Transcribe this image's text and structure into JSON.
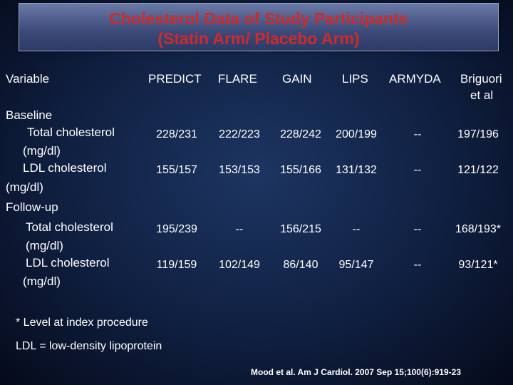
{
  "title": {
    "line1": "Cholesterol Data of Study Participants",
    "line2": "(Statin Arm/ Placebo Arm)"
  },
  "table": {
    "headers": [
      "Variable",
      "PREDICT",
      "FLARE",
      "GAIN",
      "LIPS",
      "ARMYDA",
      "Briguori",
      "et al"
    ],
    "sections": {
      "baseline": "Baseline",
      "followup": "Follow-up"
    },
    "row_labels": {
      "total_chol": "Total cholesterol",
      "ldl_chol": "LDL cholesterol",
      "unit": "(mg/dl)"
    },
    "baseline_total": [
      "228/231",
      "222/223",
      "228/242",
      "200/199",
      "--",
      "197/196"
    ],
    "baseline_ldl": [
      "155/157",
      "153/153",
      "155/166",
      "131/132",
      "--",
      "121/122"
    ],
    "followup_total": [
      "195/239",
      "--",
      "156/215",
      "--",
      "--",
      "168/193*"
    ],
    "followup_ldl": [
      "119/159",
      "102/149",
      "86/140",
      "95/147",
      "--",
      "93/121*"
    ]
  },
  "footnotes": {
    "asterisk": "*  Level at index procedure",
    "ldl": "LDL = low-density lipoprotein"
  },
  "citation": "Mood et al.  Am J Cardiol.  2007 Sep 15;100(6):919-23"
}
